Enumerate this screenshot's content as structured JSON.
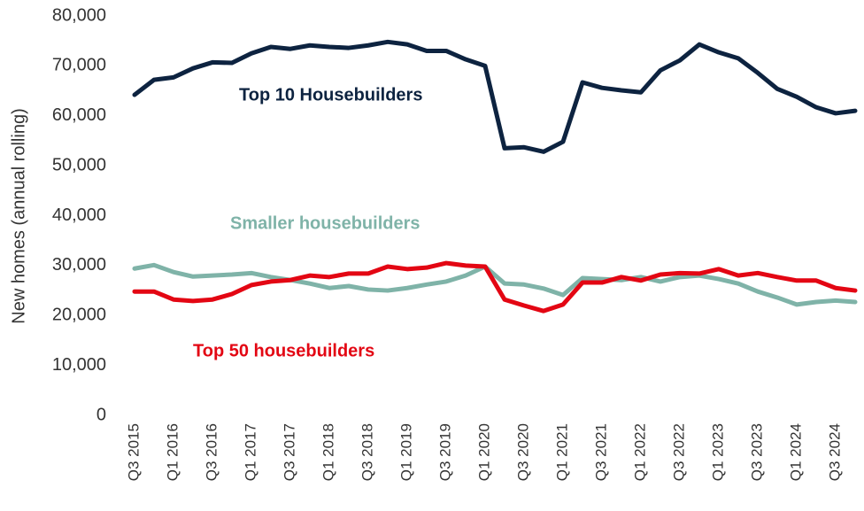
{
  "chart_data": {
    "type": "line",
    "y_label": "New homes (annual rolling)",
    "categories": [
      "Q3 2015",
      null,
      "Q1 2016",
      null,
      "Q3 2016",
      null,
      "Q1 2017",
      null,
      "Q3 2017",
      null,
      "Q1 2018",
      null,
      "Q3 2018",
      null,
      "Q1 2019",
      null,
      "Q3 2019",
      null,
      "Q1 2020",
      null,
      "Q3 2020",
      null,
      "Q1 2021",
      null,
      "Q3 2021",
      null,
      "Q1 2022",
      null,
      "Q3 2022",
      null,
      "Q1 2023",
      null,
      "Q3 2023",
      null,
      "Q1 2024",
      null,
      "Q3 2024",
      null
    ],
    "series": [
      {
        "name": "Top 10 Housebuilders",
        "color": "#0d2340",
        "values": [
          64200,
          67200,
          67700,
          69500,
          70700,
          70600,
          72500,
          73800,
          73400,
          74100,
          73800,
          73600,
          74100,
          74800,
          74300,
          73000,
          73000,
          71300,
          70000,
          53500,
          53700,
          52800,
          54800,
          66700,
          65600,
          65100,
          64700,
          69100,
          71100,
          74300,
          72700,
          71500,
          68600,
          65400,
          63800,
          61700,
          60500,
          61000
        ]
      },
      {
        "name": "Smaller housebuilders",
        "color": "#7fb3a8",
        "values": [
          29400,
          30100,
          28700,
          27800,
          28000,
          28200,
          28500,
          27700,
          27100,
          26400,
          25500,
          25900,
          25200,
          25000,
          25500,
          26200,
          26800,
          28000,
          29800,
          26400,
          26200,
          25400,
          24100,
          27500,
          27300,
          27100,
          27700,
          26800,
          27700,
          28000,
          27300,
          26400,
          24800,
          23600,
          22200,
          22700,
          23000,
          22700
        ]
      },
      {
        "name": "Top 50 housebuilders",
        "color": "#e30613",
        "values": [
          24800,
          24800,
          23200,
          22900,
          23200,
          24300,
          26100,
          26800,
          27100,
          28000,
          27700,
          28400,
          28400,
          29800,
          29300,
          29600,
          30500,
          30000,
          29800,
          23200,
          22000,
          20900,
          22200,
          26600,
          26600,
          27700,
          27000,
          28200,
          28500,
          28400,
          29300,
          28000,
          28500,
          27700,
          27000,
          27000,
          25500,
          25000
        ]
      }
    ],
    "ylim": [
      0,
      80000
    ],
    "yticks": [
      0,
      {
        "value": 10000,
        "label": "10,000"
      },
      {
        "value": 20000,
        "label": "20,000"
      },
      {
        "value": 30000,
        "label": "30,000"
      },
      {
        "value": 40000,
        "label": "40,000"
      },
      {
        "value": 50000,
        "label": "50,000"
      },
      {
        "value": 60000,
        "label": "60,000"
      },
      {
        "value": 70000,
        "label": "70,000"
      },
      {
        "value": 80000,
        "label": "80,000"
      }
    ],
    "grid": false
  }
}
